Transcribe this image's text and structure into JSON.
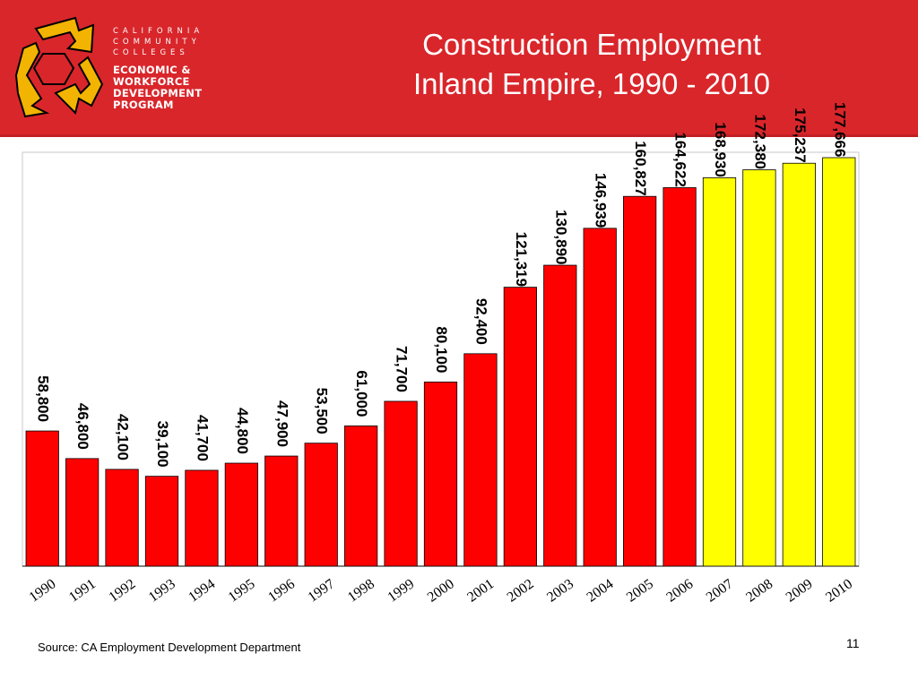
{
  "logo": {
    "line1": "CALIFORNIA",
    "line2": "COMMUNITY",
    "line3": "COLLEGES",
    "line4": "ECONOMIC &",
    "line5": "WORKFORCE",
    "line6": "DEVELOPMENT",
    "line7": "PROGRAM"
  },
  "title": {
    "line1": "Construction Employment",
    "line2": "Inland Empire, 1990 - 2010"
  },
  "source": "Source: CA Employment Development Department",
  "page_number": "11",
  "colors": {
    "banner": "#d9262b",
    "actual_bar": "#ff0000",
    "projected_bar": "#ffff00"
  },
  "chart_data": {
    "type": "bar",
    "title": "Construction Employment Inland Empire, 1990 - 2010",
    "xlabel": "",
    "ylabel": "",
    "ylim": [
      0,
      180000
    ],
    "grid": false,
    "categories": [
      "1990",
      "1991",
      "1992",
      "1993",
      "1994",
      "1995",
      "1996",
      "1997",
      "1998",
      "1999",
      "2000",
      "2001",
      "2002",
      "2003",
      "2004",
      "2005",
      "2006",
      "2007",
      "2008",
      "2009",
      "2010"
    ],
    "values": [
      58800,
      46800,
      42100,
      39100,
      41700,
      44800,
      47900,
      53500,
      61000,
      71700,
      80100,
      92400,
      121319,
      130890,
      146939,
      160827,
      164622,
      168930,
      172380,
      175237,
      177666
    ],
    "value_labels": [
      "58,800",
      "46,800",
      "42,100",
      "39,100",
      "41,700",
      "44,800",
      "47,900",
      "53,500",
      "61,000",
      "71,700",
      "80,100",
      "92,400",
      "121,319",
      "130,890",
      "146,939",
      "160,827",
      "164,622",
      "168,930",
      "172,380",
      "175,237",
      "177,666"
    ],
    "bar_colors": [
      "#ff0000",
      "#ff0000",
      "#ff0000",
      "#ff0000",
      "#ff0000",
      "#ff0000",
      "#ff0000",
      "#ff0000",
      "#ff0000",
      "#ff0000",
      "#ff0000",
      "#ff0000",
      "#ff0000",
      "#ff0000",
      "#ff0000",
      "#ff0000",
      "#ff0000",
      "#ffff00",
      "#ffff00",
      "#ffff00",
      "#ffff00"
    ]
  }
}
